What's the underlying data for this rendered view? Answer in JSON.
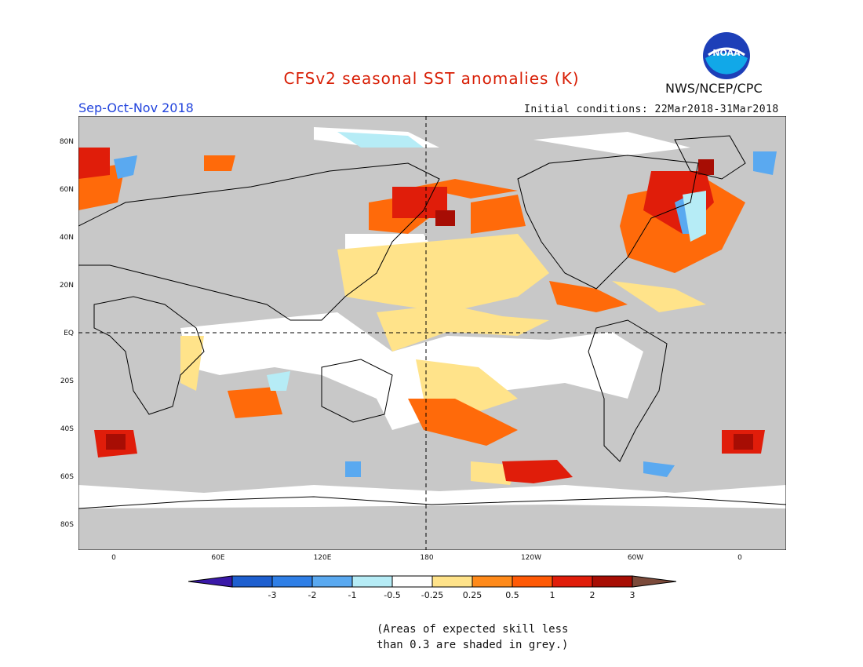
{
  "title": "CFSv2 seasonal SST anomalies (K)",
  "season": "Sep-Oct-Nov 2018",
  "initial_conditions": "Initial conditions: 22Mar2018-31Mar2018",
  "agency": "NWS/NCEP/CPC",
  "logo_text": "NOAA",
  "lat_labels": [
    "80N",
    "60N",
    "40N",
    "20N",
    "EQ",
    "20S",
    "40S",
    "60S",
    "80S"
  ],
  "lon_labels": [
    "0",
    "60E",
    "120E",
    "180",
    "120W",
    "60W",
    "0"
  ],
  "colorbar": {
    "labels": [
      "-3",
      "-2",
      "-1",
      "-0.5",
      "-0.25",
      "0.25",
      "0.5",
      "1",
      "2",
      "3"
    ],
    "colors": [
      "#3a19a8",
      "#1e5fcf",
      "#2f7fe6",
      "#5aa9f0",
      "#b6ecf6",
      "#ffffff",
      "#ffe38a",
      "#ff8a1a",
      "#ff5a06",
      "#e01d0a",
      "#a70d04",
      "#7b4a3a"
    ]
  },
  "colors": {
    "land_grey": "#c8c8c8",
    "warm_light": "#ffe38a",
    "warm_orange": "#ff6a0a",
    "warm_red": "#e01d0a",
    "warm_dark": "#a70d04",
    "cool_light": "#b6ecf6",
    "cool_blue": "#5aa9f0",
    "title_red": "#d81e05",
    "season_blue": "#2244dd"
  },
  "note_line1": "(Areas of expected skill less",
  "note_line2": "than 0.3 are shaded in grey.)"
}
